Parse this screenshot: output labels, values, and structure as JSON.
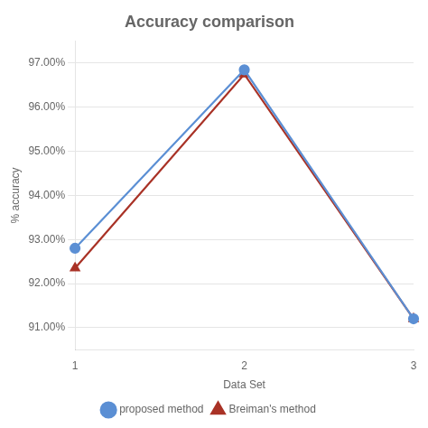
{
  "chart_data": {
    "type": "line",
    "title": "Accuracy comparison",
    "x_label": "Data Set",
    "y_label": "% accuracy",
    "x": [
      1,
      2,
      3
    ],
    "series": [
      {
        "name": "proposed method",
        "color": "#5B8FD4",
        "marker": "circle",
        "values": [
          92.8,
          96.85,
          91.2
        ]
      },
      {
        "name": "Breiman's method",
        "color": "#A93226",
        "marker": "triangle",
        "values": [
          92.35,
          96.75,
          91.2
        ]
      }
    ],
    "xlim": [
      1,
      3
    ],
    "xticks": [
      1,
      2,
      3
    ],
    "ylim": [
      90.5,
      97.5
    ],
    "yticks": [
      {
        "value": 91.0,
        "label": "91.00%"
      },
      {
        "value": 92.0,
        "label": "92.00%"
      },
      {
        "value": 93.0,
        "label": "93.00%"
      },
      {
        "value": 94.0,
        "label": "94.00%"
      },
      {
        "value": 95.0,
        "label": "95.00%"
      },
      {
        "value": 96.0,
        "label": "96.00%"
      },
      {
        "value": 97.0,
        "label": "97.00%"
      }
    ],
    "grid": "y",
    "legend": "bottom"
  }
}
